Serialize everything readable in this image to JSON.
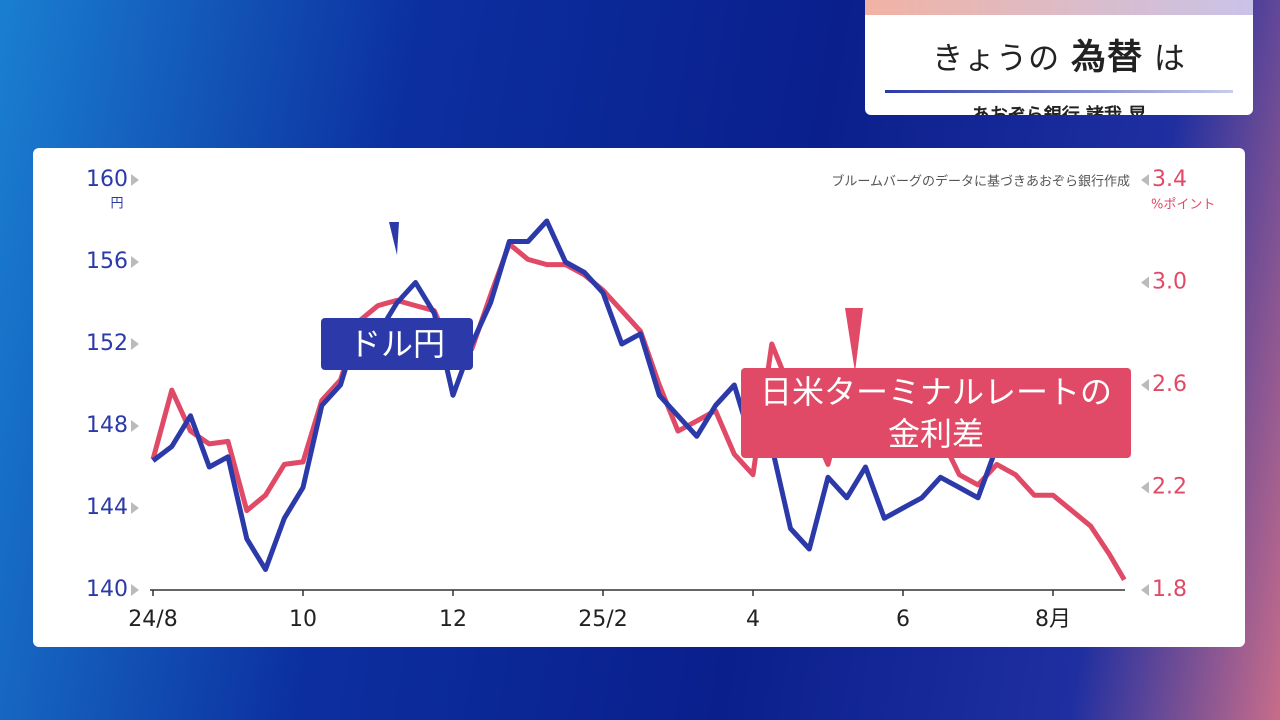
{
  "header": {
    "title_parts": [
      "きょうの",
      "為替",
      "は"
    ],
    "subtitle": "あおぞら銀行 諸我 晃"
  },
  "chart_data": {
    "type": "line",
    "source": "ブルームバーグのデータに基づきあおぞら銀行作成",
    "y_unit": "円",
    "y2_unit": "%ポイント",
    "x": [
      0,
      0.25,
      0.5,
      0.75,
      1,
      1.25,
      1.5,
      1.75,
      2,
      2.25,
      2.5,
      2.75,
      3,
      3.25,
      3.5,
      3.75,
      4,
      4.25,
      4.5,
      4.75,
      5,
      5.25,
      5.5,
      5.75,
      6,
      6.25,
      6.5,
      6.75,
      7,
      7.25,
      7.5,
      7.75,
      8,
      8.25,
      8.5,
      8.75,
      9,
      9.25,
      9.5,
      9.75,
      10,
      10.25,
      10.5,
      10.75,
      11,
      11.25,
      11.5,
      11.75,
      12,
      12.25,
      12.5,
      12.75,
      12.95
    ],
    "xlim": [
      -0.05,
      13.2
    ],
    "xticks": [
      {
        "value": 0,
        "label": "24/8"
      },
      {
        "value": 2,
        "label": "10"
      },
      {
        "value": 4,
        "label": "12"
      },
      {
        "value": 6,
        "label": "25/2"
      },
      {
        "value": 8,
        "label": "4"
      },
      {
        "value": 10,
        "label": "6"
      },
      {
        "value": 12,
        "label": "8月"
      }
    ],
    "ylim": [
      140,
      160
    ],
    "yticks": [
      140,
      144,
      148,
      152,
      156,
      160
    ],
    "y2lim": [
      1.8,
      3.4
    ],
    "y2ticks": [
      1.8,
      2.2,
      2.6,
      {
        "value": 3,
        "label": "3.0"
      },
      3.4
    ],
    "series": [
      {
        "name": "ドル円",
        "color": "#2b3aa8",
        "axis": "y",
        "values": [
          146.3,
          147,
          148.5,
          146,
          146.5,
          142.5,
          141,
          143.5,
          145,
          149,
          150,
          153,
          152.5,
          154,
          155,
          153.5,
          149.5,
          152,
          154,
          157,
          157,
          158,
          156,
          155.5,
          154.5,
          152,
          152.5,
          149.5,
          148.5,
          147.5,
          149,
          150,
          147,
          147,
          143,
          142,
          145.5,
          144.5,
          146,
          143.5,
          144,
          144.5,
          145.5,
          145,
          144.5,
          147,
          148,
          147.5,
          150.5,
          147.5,
          147.5,
          147.5,
          147.2
        ]
      },
      {
        "name": "日米ターミナルレートの金利差",
        "color": "#e04a66",
        "axis": "y2",
        "values": [
          2.31,
          2.58,
          2.42,
          2.37,
          2.38,
          2.11,
          2.17,
          2.29,
          2.3,
          2.54,
          2.62,
          2.85,
          2.91,
          2.93,
          2.91,
          2.89,
          2.72,
          2.74,
          2.95,
          3.15,
          3.09,
          3.07,
          3.07,
          3.03,
          2.97,
          2.89,
          2.81,
          2.6,
          2.42,
          2.46,
          2.5,
          2.33,
          2.25,
          2.76,
          2.58,
          2.46,
          2.29,
          2.58,
          2.52,
          2.46,
          2.37,
          2.42,
          2.4,
          2.25,
          2.21,
          2.29,
          2.25,
          2.17,
          2.17,
          2.11,
          2.05,
          1.94,
          1.84
        ]
      }
    ]
  }
}
